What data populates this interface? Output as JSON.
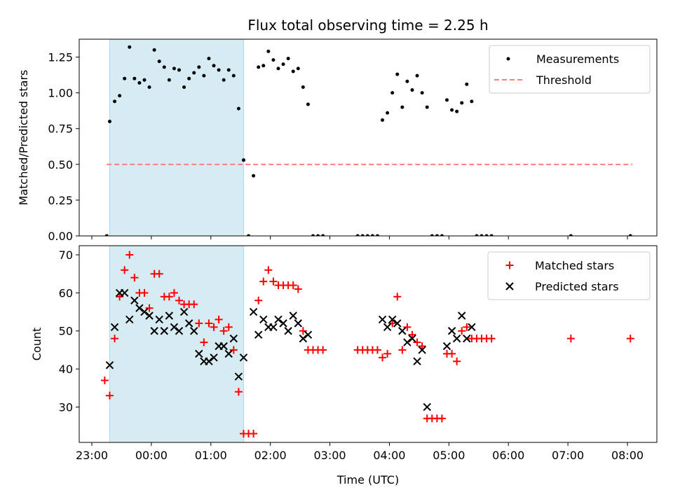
{
  "chart_data": [
    {
      "type": "scatter",
      "title": "Flux total observing time = 2.25 h",
      "xlabel": "",
      "ylabel": "Matched/Predicted stars",
      "ylim": [
        0.0,
        1.375
      ],
      "yticks": [
        "0.00",
        "0.25",
        "0.50",
        "0.75",
        "1.00",
        "1.25"
      ],
      "shaded_span": {
        "start": "23:18",
        "end": "01:33"
      },
      "legend": {
        "position": "top-right",
        "entries": [
          "Measurements",
          "Threshold"
        ]
      },
      "threshold": {
        "name": "Threshold",
        "y": 0.5,
        "x_start": "23:15",
        "x_end": "08:05",
        "color": "#ff7f7f"
      },
      "series": [
        {
          "name": "Measurements",
          "color": "#000000",
          "points": [
            [
              "23:15",
              0.0
            ],
            [
              "23:18",
              0.8
            ],
            [
              "23:23",
              0.94
            ],
            [
              "23:28",
              0.98
            ],
            [
              "23:33",
              1.1
            ],
            [
              "23:38",
              1.32
            ],
            [
              "23:43",
              1.1
            ],
            [
              "23:48",
              1.07
            ],
            [
              "23:53",
              1.09
            ],
            [
              "23:58",
              1.04
            ],
            [
              "00:03",
              1.3
            ],
            [
              "00:08",
              1.22
            ],
            [
              "00:13",
              1.18
            ],
            [
              "00:18",
              1.09
            ],
            [
              "00:23",
              1.17
            ],
            [
              "00:28",
              1.16
            ],
            [
              "00:33",
              1.04
            ],
            [
              "00:38",
              1.1
            ],
            [
              "00:43",
              1.14
            ],
            [
              "00:48",
              1.18
            ],
            [
              "00:53",
              1.12
            ],
            [
              "00:58",
              1.24
            ],
            [
              "01:03",
              1.19
            ],
            [
              "01:08",
              1.16
            ],
            [
              "01:13",
              1.09
            ],
            [
              "01:18",
              1.16
            ],
            [
              "01:23",
              1.12
            ],
            [
              "01:28",
              0.89
            ],
            [
              "01:33",
              0.53
            ],
            [
              "01:38",
              0.0
            ],
            [
              "01:43",
              0.42
            ],
            [
              "01:48",
              1.18
            ],
            [
              "01:53",
              1.19
            ],
            [
              "01:58",
              1.29
            ],
            [
              "02:03",
              1.23
            ],
            [
              "02:08",
              1.17
            ],
            [
              "02:13",
              1.2
            ],
            [
              "02:18",
              1.24
            ],
            [
              "02:23",
              1.15
            ],
            [
              "02:28",
              1.17
            ],
            [
              "02:33",
              1.04
            ],
            [
              "02:38",
              0.92
            ],
            [
              "02:43",
              0.0
            ],
            [
              "02:48",
              0.0
            ],
            [
              "02:53",
              0.0
            ],
            [
              "03:28",
              0.0
            ],
            [
              "03:33",
              0.0
            ],
            [
              "03:38",
              0.0
            ],
            [
              "03:43",
              0.0
            ],
            [
              "03:48",
              0.0
            ],
            [
              "03:53",
              0.81
            ],
            [
              "03:58",
              0.86
            ],
            [
              "04:03",
              1.0
            ],
            [
              "04:08",
              1.13
            ],
            [
              "04:13",
              0.9
            ],
            [
              "04:18",
              1.08
            ],
            [
              "04:23",
              1.02
            ],
            [
              "04:28",
              1.12
            ],
            [
              "04:33",
              1.0
            ],
            [
              "04:38",
              0.9
            ],
            [
              "04:43",
              0.0
            ],
            [
              "04:48",
              0.0
            ],
            [
              "04:53",
              0.0
            ],
            [
              "04:58",
              0.95
            ],
            [
              "05:03",
              0.88
            ],
            [
              "05:08",
              0.87
            ],
            [
              "05:13",
              0.93
            ],
            [
              "05:18",
              1.06
            ],
            [
              "05:23",
              0.94
            ],
            [
              "05:28",
              0.0
            ],
            [
              "05:33",
              0.0
            ],
            [
              "05:38",
              0.0
            ],
            [
              "05:43",
              0.0
            ],
            [
              "07:03",
              0.0
            ],
            [
              "08:03",
              0.0
            ]
          ]
        }
      ]
    },
    {
      "type": "scatter",
      "title": "",
      "xlabel": "Time (UTC)",
      "ylabel": "Count",
      "ylim": [
        20.7,
        72.4
      ],
      "yticks": [
        "30",
        "40",
        "50",
        "60",
        "70"
      ],
      "xticks": [
        "23:00",
        "00:00",
        "01:00",
        "02:00",
        "03:00",
        "04:00",
        "05:00",
        "06:00",
        "07:00",
        "08:00"
      ],
      "shaded_span": {
        "start": "23:18",
        "end": "01:33"
      },
      "legend": {
        "position": "top-right",
        "entries": [
          "Matched stars",
          "Predicted stars"
        ]
      },
      "series": [
        {
          "name": "Matched stars",
          "marker": "+",
          "color": "#ff0000",
          "points": [
            [
              "23:13",
              37
            ],
            [
              "23:18",
              33
            ],
            [
              "23:23",
              48
            ],
            [
              "23:28",
              59
            ],
            [
              "23:33",
              66
            ],
            [
              "23:38",
              70
            ],
            [
              "23:43",
              64
            ],
            [
              "23:48",
              60
            ],
            [
              "23:53",
              60
            ],
            [
              "23:58",
              56
            ],
            [
              "00:03",
              65
            ],
            [
              "00:08",
              65
            ],
            [
              "00:13",
              59
            ],
            [
              "00:18",
              59
            ],
            [
              "00:23",
              60
            ],
            [
              "00:28",
              58
            ],
            [
              "00:33",
              57
            ],
            [
              "00:38",
              57
            ],
            [
              "00:43",
              57
            ],
            [
              "00:48",
              52
            ],
            [
              "00:53",
              47
            ],
            [
              "00:58",
              52
            ],
            [
              "01:03",
              51
            ],
            [
              "01:08",
              53
            ],
            [
              "01:13",
              50
            ],
            [
              "01:18",
              51
            ],
            [
              "01:23",
              45
            ],
            [
              "01:28",
              34
            ],
            [
              "01:33",
              23
            ],
            [
              "01:38",
              23
            ],
            [
              "01:43",
              23
            ],
            [
              "01:48",
              58
            ],
            [
              "01:53",
              63
            ],
            [
              "01:58",
              66
            ],
            [
              "02:03",
              63
            ],
            [
              "02:08",
              62
            ],
            [
              "02:13",
              62
            ],
            [
              "02:18",
              62
            ],
            [
              "02:23",
              62
            ],
            [
              "02:28",
              61
            ],
            [
              "02:33",
              50
            ],
            [
              "02:38",
              45
            ],
            [
              "02:43",
              45
            ],
            [
              "02:48",
              45
            ],
            [
              "02:53",
              45
            ],
            [
              "03:28",
              45
            ],
            [
              "03:33",
              45
            ],
            [
              "03:38",
              45
            ],
            [
              "03:43",
              45
            ],
            [
              "03:48",
              45
            ],
            [
              "03:53",
              43
            ],
            [
              "03:58",
              44
            ],
            [
              "04:03",
              52
            ],
            [
              "04:08",
              59
            ],
            [
              "04:13",
              45
            ],
            [
              "04:18",
              51
            ],
            [
              "04:23",
              49
            ],
            [
              "04:28",
              47
            ],
            [
              "04:33",
              46
            ],
            [
              "04:38",
              27
            ],
            [
              "04:43",
              27
            ],
            [
              "04:48",
              27
            ],
            [
              "04:53",
              27
            ],
            [
              "04:58",
              44
            ],
            [
              "05:03",
              44
            ],
            [
              "05:08",
              42
            ],
            [
              "05:13",
              50
            ],
            [
              "05:18",
              51
            ],
            [
              "05:23",
              48
            ],
            [
              "05:28",
              48
            ],
            [
              "05:33",
              48
            ],
            [
              "05:38",
              48
            ],
            [
              "05:43",
              48
            ],
            [
              "07:03",
              48
            ],
            [
              "08:03",
              48
            ]
          ]
        },
        {
          "name": "Predicted stars",
          "marker": "x",
          "color": "#000000",
          "points": [
            [
              "23:18",
              41
            ],
            [
              "23:23",
              51
            ],
            [
              "23:28",
              60
            ],
            [
              "23:33",
              60
            ],
            [
              "23:38",
              53
            ],
            [
              "23:43",
              58
            ],
            [
              "23:48",
              56
            ],
            [
              "23:53",
              55
            ],
            [
              "23:58",
              54
            ],
            [
              "00:03",
              50
            ],
            [
              "00:08",
              53
            ],
            [
              "00:13",
              50
            ],
            [
              "00:18",
              54
            ],
            [
              "00:23",
              51
            ],
            [
              "00:28",
              50
            ],
            [
              "00:33",
              55
            ],
            [
              "00:38",
              52
            ],
            [
              "00:43",
              50
            ],
            [
              "00:48",
              44
            ],
            [
              "00:53",
              42
            ],
            [
              "00:58",
              42
            ],
            [
              "01:03",
              43
            ],
            [
              "01:08",
              46
            ],
            [
              "01:13",
              46
            ],
            [
              "01:18",
              44
            ],
            [
              "01:23",
              48
            ],
            [
              "01:28",
              38
            ],
            [
              "01:33",
              43
            ],
            [
              "01:43",
              55
            ],
            [
              "01:48",
              49
            ],
            [
              "01:53",
              53
            ],
            [
              "01:58",
              51
            ],
            [
              "02:03",
              51
            ],
            [
              "02:08",
              53
            ],
            [
              "02:13",
              52
            ],
            [
              "02:18",
              50
            ],
            [
              "02:23",
              54
            ],
            [
              "02:28",
              52
            ],
            [
              "02:33",
              48
            ],
            [
              "02:38",
              49
            ],
            [
              "03:53",
              53
            ],
            [
              "03:58",
              51
            ],
            [
              "04:03",
              53
            ],
            [
              "04:08",
              52
            ],
            [
              "04:13",
              50
            ],
            [
              "04:18",
              47
            ],
            [
              "04:23",
              48
            ],
            [
              "04:28",
              42
            ],
            [
              "04:33",
              45
            ],
            [
              "04:38",
              30
            ],
            [
              "04:58",
              46
            ],
            [
              "05:03",
              50
            ],
            [
              "05:08",
              48
            ],
            [
              "05:13",
              54
            ],
            [
              "05:18",
              48
            ],
            [
              "05:23",
              51
            ]
          ]
        }
      ]
    }
  ]
}
